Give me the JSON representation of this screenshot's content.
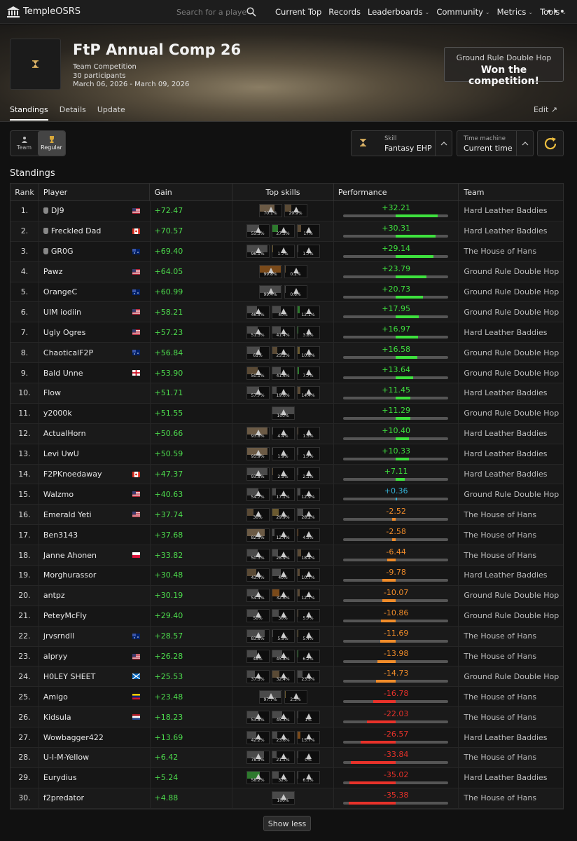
{
  "nav": {
    "logo_text": "TempleOSRS",
    "search_placeholder": "Search for a player",
    "menu": [
      {
        "label": "Current Top",
        "dropdown": false
      },
      {
        "label": "Records",
        "dropdown": false
      },
      {
        "label": "Leaderboards",
        "dropdown": true
      },
      {
        "label": "Community",
        "dropdown": true
      },
      {
        "label": "Metrics",
        "dropdown": true
      },
      {
        "label": "Tools",
        "dropdown": true
      }
    ],
    "more": "•••"
  },
  "competition": {
    "title": "FtP Annual Comp 26",
    "type": "Team Competition",
    "participants": "30 participants",
    "dates": "March 06, 2026 - March 09, 2026",
    "winner_team": "Ground Rule Double Hop",
    "winner_text": "Won the competition!"
  },
  "tabs": [
    {
      "label": "Standings",
      "active": true
    },
    {
      "label": "Details",
      "active": false
    },
    {
      "label": "Update",
      "active": false
    }
  ],
  "edit_label": "Edit ↗",
  "controls": {
    "team_label": "Team",
    "regular_label": "Regular",
    "skill_label": "Skill",
    "skill_value": "Fantasy EHP",
    "time_label": "Time machine",
    "time_value": "Current time"
  },
  "section_title": "Standings",
  "table": {
    "headers": {
      "rank": "Rank",
      "player": "Player",
      "gain": "Gain",
      "skills": "Top skills",
      "perf": "Performance",
      "team": "Team"
    },
    "perf_range": [
      -40,
      40
    ],
    "colors": {
      "positive": "#3ee03e",
      "neutral": "#35b4d8",
      "mid_negative": "#f08c2a",
      "negative": "#e8322a"
    },
    "rows": [
      {
        "rank": "1.",
        "player": "DJ9",
        "icon": true,
        "flag": "us",
        "gain": "+72.47",
        "skills": [
          {
            "pct": "70.1%",
            "fill": 0.701,
            "color": "#6b5a45"
          },
          {
            "pct": "29.9%",
            "fill": 0.299,
            "color": "#5a4a35"
          }
        ],
        "perf": "+32.21",
        "perf_value": 32.21,
        "team": "Hard Leather Baddies"
      },
      {
        "rank": "2.",
        "player": "Freckled Dad",
        "icon": true,
        "flag": "ca",
        "gain": "+70.57",
        "skills": [
          {
            "pct": "55.3%",
            "fill": 0.553,
            "color": "#4a4a4a"
          },
          {
            "pct": "27.5%",
            "fill": 0.275,
            "color": "#2d7a2d"
          },
          {
            "pct": "17%",
            "fill": 0.17,
            "color": "#5a4a35"
          }
        ],
        "perf": "+30.31",
        "perf_value": 30.31,
        "team": "Hard Leather Baddies"
      },
      {
        "rank": "3.",
        "player": "GR0G",
        "icon": true,
        "flag": "au",
        "gain": "+69.40",
        "skills": [
          {
            "pct": "96.1%",
            "fill": 0.961,
            "color": "#4a4a4a"
          },
          {
            "pct": "1.7%",
            "fill": 0.017,
            "color": "#6b5a30"
          },
          {
            "pct": "1.7%",
            "fill": 0.017,
            "color": "#4a4a4a"
          }
        ],
        "perf": "+29.14",
        "perf_value": 29.14,
        "team": "The House of Hans"
      },
      {
        "rank": "4.",
        "player": "Pawz",
        "icon": false,
        "flag": "us",
        "gain": "+64.05",
        "skills": [
          {
            "pct": "99.8%",
            "fill": 0.998,
            "color": "#7a4a1a"
          },
          {
            "pct": "0.2%",
            "fill": 0.002,
            "color": "#5a4a35"
          }
        ],
        "perf": "+23.79",
        "perf_value": 23.79,
        "team": "Ground Rule Double Hop"
      },
      {
        "rank": "5.",
        "player": "OrangeC",
        "icon": false,
        "flag": "au",
        "gain": "+60.99",
        "skills": [
          {
            "pct": "99.4%",
            "fill": 0.994,
            "color": "#4a4a4a"
          },
          {
            "pct": "0.6%",
            "fill": 0.006,
            "color": "#4a4a4a"
          }
        ],
        "perf": "+20.73",
        "perf_value": 20.73,
        "team": "Ground Rule Double Hop"
      },
      {
        "rank": "6.",
        "player": "UIM iodiin",
        "icon": false,
        "flag": "us",
        "gain": "+58.21",
        "skills": [
          {
            "pct": "46.5%",
            "fill": 0.465,
            "color": "#4a4a4a"
          },
          {
            "pct": "40%",
            "fill": 0.4,
            "color": "#4a4a4a"
          },
          {
            "pct": "12.1%",
            "fill": 0.121,
            "color": "#2d7a2d"
          }
        ],
        "perf": "+17.95",
        "perf_value": 17.95,
        "team": "Ground Rule Double Hop"
      },
      {
        "rank": "7.",
        "player": "Ugly Ogres",
        "icon": false,
        "flag": "us",
        "gain": "+57.23",
        "skills": [
          {
            "pct": "51.3%",
            "fill": 0.513,
            "color": "#4a4a4a"
          },
          {
            "pct": "41.4%",
            "fill": 0.414,
            "color": "#4a4a4a"
          },
          {
            "pct": "3.8%",
            "fill": 0.038,
            "color": "#2d7a2d"
          }
        ],
        "perf": "+16.97",
        "perf_value": 16.97,
        "team": "Hard Leather Baddies"
      },
      {
        "rank": "8.",
        "player": "ChaoticalF2P",
        "icon": false,
        "flag": "au",
        "gain": "+56.84",
        "skills": [
          {
            "pct": "61%",
            "fill": 0.61,
            "color": "#4a4a4a"
          },
          {
            "pct": "25.2%",
            "fill": 0.252,
            "color": "#5a4a35"
          },
          {
            "pct": "10.8%",
            "fill": 0.108,
            "color": "#6b5a30"
          }
        ],
        "perf": "+16.58",
        "perf_value": 16.58,
        "team": "Ground Rule Double Hop"
      },
      {
        "rank": "9.",
        "player": "Bald Unne",
        "icon": false,
        "flag": "en",
        "gain": "+53.90",
        "skills": [
          {
            "pct": "50.1%",
            "fill": 0.501,
            "color": "#5a4a35"
          },
          {
            "pct": "41.6%",
            "fill": 0.416,
            "color": "#4a4a4a"
          },
          {
            "pct": "7.7%",
            "fill": 0.077,
            "color": "#2d7a2d"
          }
        ],
        "perf": "+13.64",
        "perf_value": 13.64,
        "team": "Ground Rule Double Hop"
      },
      {
        "rank": "10.",
        "player": "Flow",
        "icon": false,
        "flag": "",
        "gain": "+51.71",
        "skills": [
          {
            "pct": "57.7%",
            "fill": 0.577,
            "color": "#4a4a4a"
          },
          {
            "pct": "19.6%",
            "fill": 0.196,
            "color": "#4a4a4a"
          },
          {
            "pct": "14.4%",
            "fill": 0.144,
            "color": "#5a4a35"
          }
        ],
        "perf": "+11.45",
        "perf_value": 11.45,
        "team": "Hard Leather Baddies"
      },
      {
        "rank": "11.",
        "player": "y2000k",
        "icon": false,
        "flag": "",
        "gain": "+51.55",
        "skills": [
          {
            "pct": "100%",
            "fill": 1.0,
            "color": "#4a4a4a"
          }
        ],
        "perf": "+11.29",
        "perf_value": 11.29,
        "team": "Ground Rule Double Hop"
      },
      {
        "rank": "12.",
        "player": "ActualHorn",
        "icon": false,
        "flag": "",
        "gain": "+50.66",
        "skills": [
          {
            "pct": "93.8%",
            "fill": 0.938,
            "color": "#6b5a45"
          },
          {
            "pct": "4.4%",
            "fill": 0.044,
            "color": "#4a4a4a"
          },
          {
            "pct": "1.5%",
            "fill": 0.015,
            "color": "#5a4a35"
          }
        ],
        "perf": "+10.40",
        "perf_value": 10.4,
        "team": "Hard Leather Baddies"
      },
      {
        "rank": "13.",
        "player": "Levi UwU",
        "icon": false,
        "flag": "",
        "gain": "+50.59",
        "skills": [
          {
            "pct": "95.9%",
            "fill": 0.959,
            "color": "#6b5a45"
          },
          {
            "pct": "1.9%",
            "fill": 0.019,
            "color": "#4a4a4a"
          },
          {
            "pct": "1.7%",
            "fill": 0.017,
            "color": "#4a4a4a"
          }
        ],
        "perf": "+10.33",
        "perf_value": 10.33,
        "team": "Hard Leather Baddies"
      },
      {
        "rank": "14.",
        "player": "F2PKnoedaway",
        "icon": false,
        "flag": "ca",
        "gain": "+47.37",
        "skills": [
          {
            "pct": "93.8%",
            "fill": 0.938,
            "color": "#4a4a4a"
          },
          {
            "pct": "2.9%",
            "fill": 0.029,
            "color": "#5a4a35"
          },
          {
            "pct": "2.1%",
            "fill": 0.021,
            "color": "#4a4a4a"
          }
        ],
        "perf": "+7.11",
        "perf_value": 7.11,
        "team": "Hard Leather Baddies"
      },
      {
        "rank": "15.",
        "player": "Walzmo",
        "icon": false,
        "flag": "us",
        "gain": "+40.63",
        "skills": [
          {
            "pct": "54.7%",
            "fill": 0.547,
            "color": "#4a4a4a"
          },
          {
            "pct": "17.1%",
            "fill": 0.171,
            "color": "#4a4a4a"
          },
          {
            "pct": "12.9%",
            "fill": 0.129,
            "color": "#4a4a4a"
          }
        ],
        "perf": "+0.36",
        "perf_value": 0.36,
        "team": "Ground Rule Double Hop"
      },
      {
        "rank": "16.",
        "player": "Emerald Yeti",
        "icon": false,
        "flag": "us",
        "gain": "+37.74",
        "skills": [
          {
            "pct": "30%",
            "fill": 0.3,
            "color": "#5a4a35"
          },
          {
            "pct": "29.9%",
            "fill": 0.299,
            "color": "#6b5a30"
          },
          {
            "pct": "28.2%",
            "fill": 0.282,
            "color": "#4a4a4a"
          }
        ],
        "perf": "-2.52",
        "perf_value": -2.52,
        "team": "The House of Hans"
      },
      {
        "rank": "17.",
        "player": "Ben3143",
        "icon": false,
        "flag": "",
        "gain": "+37.68",
        "skills": [
          {
            "pct": "82.9%",
            "fill": 0.829,
            "color": "#6b5a45"
          },
          {
            "pct": "12.4%",
            "fill": 0.124,
            "color": "#4a4a4a"
          },
          {
            "pct": "4.5%",
            "fill": 0.045,
            "color": "#7a4a1a"
          }
        ],
        "perf": "-2.58",
        "perf_value": -2.58,
        "team": "The House of Hans"
      },
      {
        "rank": "18.",
        "player": "Janne Ahonen",
        "icon": false,
        "flag": "pl",
        "gain": "+33.82",
        "skills": [
          {
            "pct": "50.3%",
            "fill": 0.503,
            "color": "#4a4a4a"
          },
          {
            "pct": "28.9%",
            "fill": 0.289,
            "color": "#4a4a4a"
          },
          {
            "pct": "18.4%",
            "fill": 0.184,
            "color": "#5a4a35"
          }
        ],
        "perf": "-6.44",
        "perf_value": -6.44,
        "team": "The House of Hans"
      },
      {
        "rank": "19.",
        "player": "Morghurassor",
        "icon": false,
        "flag": "",
        "gain": "+30.48",
        "skills": [
          {
            "pct": "43.4%",
            "fill": 0.434,
            "color": "#5a4a35"
          },
          {
            "pct": "40%",
            "fill": 0.4,
            "color": "#4a4a4a"
          },
          {
            "pct": "10.7%",
            "fill": 0.107,
            "color": "#5a4a35"
          }
        ],
        "perf": "-9.78",
        "perf_value": -9.78,
        "team": "Hard Leather Baddies"
      },
      {
        "rank": "20.",
        "player": "antpz",
        "icon": false,
        "flag": "",
        "gain": "+30.19",
        "skills": [
          {
            "pct": "54.4%",
            "fill": 0.544,
            "color": "#4a4a4a"
          },
          {
            "pct": "32.6%",
            "fill": 0.326,
            "color": "#7a4a1a"
          },
          {
            "pct": "12.7%",
            "fill": 0.127,
            "color": "#5a4a35"
          }
        ],
        "perf": "-10.07",
        "perf_value": -10.07,
        "team": "Ground Rule Double Hop"
      },
      {
        "rank": "21.",
        "player": "PeteyMcFly",
        "icon": false,
        "flag": "",
        "gain": "+29.40",
        "skills": [
          {
            "pct": "50%",
            "fill": 0.5,
            "color": "#4a4a4a"
          },
          {
            "pct": "30%",
            "fill": 0.3,
            "color": "#4a4a4a"
          },
          {
            "pct": "5.7%",
            "fill": 0.057,
            "color": "#5a4a35"
          }
        ],
        "perf": "-10.86",
        "perf_value": -10.86,
        "team": "Ground Rule Double Hop"
      },
      {
        "rank": "22.",
        "player": "jrvsrndll",
        "icon": false,
        "flag": "au",
        "gain": "+28.57",
        "skills": [
          {
            "pct": "83.6%",
            "fill": 0.836,
            "color": "#4a4a4a"
          },
          {
            "pct": "5.9%",
            "fill": 0.059,
            "color": "#4a4a4a"
          },
          {
            "pct": "5.4%",
            "fill": 0.054,
            "color": "#6b5a30"
          }
        ],
        "perf": "-11.69",
        "perf_value": -11.69,
        "team": "The House of Hans"
      },
      {
        "rank": "23.",
        "player": "alpryy",
        "icon": false,
        "flag": "us",
        "gain": "+26.28",
        "skills": [
          {
            "pct": "48%",
            "fill": 0.48,
            "color": "#4a4a4a"
          },
          {
            "pct": "45.8%",
            "fill": 0.458,
            "color": "#4a4a4a"
          },
          {
            "pct": "6.2%",
            "fill": 0.062,
            "color": "#2d7a2d"
          }
        ],
        "perf": "-13.98",
        "perf_value": -13.98,
        "team": "The House of Hans"
      },
      {
        "rank": "24.",
        "player": "H0LEY SHEET",
        "icon": false,
        "flag": "sc",
        "gain": "+25.53",
        "skills": [
          {
            "pct": "37.5%",
            "fill": 0.375,
            "color": "#4a4a4a"
          },
          {
            "pct": "32.4%",
            "fill": 0.324,
            "color": "#5a4a35"
          },
          {
            "pct": "23.5%",
            "fill": 0.235,
            "color": "#4a4a4a"
          }
        ],
        "perf": "-14.73",
        "perf_value": -14.73,
        "team": "Ground Rule Double Hop"
      },
      {
        "rank": "25.",
        "player": "Amigo",
        "icon": false,
        "flag": "ve",
        "gain": "+23.48",
        "skills": [
          {
            "pct": "97.7%",
            "fill": 0.977,
            "color": "#4a4a4a"
          },
          {
            "pct": "2.3%",
            "fill": 0.023,
            "color": "#6b5a30"
          }
        ],
        "perf": "-16.78",
        "perf_value": -16.78,
        "team": "The House of Hans"
      },
      {
        "rank": "26.",
        "player": "Kidsula",
        "icon": false,
        "flag": "nl",
        "gain": "+18.23",
        "skills": [
          {
            "pct": "53.8%",
            "fill": 0.538,
            "color": "#4a4a4a"
          },
          {
            "pct": "45.3%",
            "fill": 0.453,
            "color": "#4a4a4a"
          },
          {
            "pct": "1%",
            "fill": 0.01,
            "color": "#4a4a4a"
          }
        ],
        "perf": "-22.03",
        "perf_value": -22.03,
        "team": "The House of Hans"
      },
      {
        "rank": "27.",
        "player": "Wowbagger422",
        "icon": false,
        "flag": "",
        "gain": "+13.69",
        "skills": [
          {
            "pct": "42.2%",
            "fill": 0.422,
            "color": "#4a4a4a"
          },
          {
            "pct": "23.6%",
            "fill": 0.236,
            "color": "#4a4a4a"
          },
          {
            "pct": "15.7%",
            "fill": 0.157,
            "color": "#7a4a1a"
          }
        ],
        "perf": "-26.57",
        "perf_value": -26.57,
        "team": "Hard Leather Baddies"
      },
      {
        "rank": "28.",
        "player": "U-I-M-Yellow",
        "icon": false,
        "flag": "",
        "gain": "+6.42",
        "skills": [
          {
            "pct": "78.9%",
            "fill": 0.789,
            "color": "#4a4a4a"
          },
          {
            "pct": "21.1%",
            "fill": 0.211,
            "color": "#4a4a4a"
          },
          {
            "pct": "0%",
            "fill": 0.0,
            "color": "#4a4a4a"
          }
        ],
        "perf": "-33.84",
        "perf_value": -33.84,
        "team": "The House of Hans"
      },
      {
        "rank": "29.",
        "player": "Eurydius",
        "icon": false,
        "flag": "",
        "gain": "+5.24",
        "skills": [
          {
            "pct": "58.2%",
            "fill": 0.582,
            "color": "#2d7a2d"
          },
          {
            "pct": "32%",
            "fill": 0.32,
            "color": "#4a4a4a"
          },
          {
            "pct": "6.1%",
            "fill": 0.061,
            "color": "#4a4a4a"
          }
        ],
        "perf": "-35.02",
        "perf_value": -35.02,
        "team": "Hard Leather Baddies"
      },
      {
        "rank": "30.",
        "player": "f2predator",
        "icon": false,
        "flag": "",
        "gain": "+4.88",
        "skills": [
          {
            "pct": "100%",
            "fill": 1.0,
            "color": "#4a4a4a"
          }
        ],
        "perf": "-35.38",
        "perf_value": -35.38,
        "team": "The House of Hans"
      }
    ]
  },
  "show_less_label": "Show less"
}
